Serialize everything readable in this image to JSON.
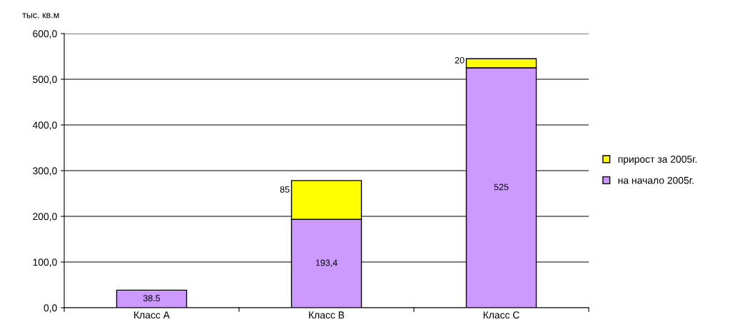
{
  "chart_data": {
    "type": "bar",
    "stacked": true,
    "ylabel": "тыс. кв.м",
    "categories": [
      "Класс А",
      "Класс В",
      "Класс С"
    ],
    "series": [
      {
        "name": "на начало 2005г.",
        "color": "#cc99ff",
        "values": [
          38.5,
          193.4,
          525
        ],
        "value_labels": [
          "38.5",
          "193,4",
          "525"
        ]
      },
      {
        "name": "прирост за 2005г.",
        "color": "#ffff00",
        "values": [
          null,
          85,
          20
        ],
        "value_labels": [
          null,
          "85",
          "20"
        ]
      }
    ],
    "ylim": [
      0,
      600
    ],
    "yticks": [
      {
        "value": 0,
        "label": "0,0"
      },
      {
        "value": 100,
        "label": "100,0"
      },
      {
        "value": 200,
        "label": "200,0"
      },
      {
        "value": 300,
        "label": "300,0"
      },
      {
        "value": 400,
        "label": "400,0"
      },
      {
        "value": 500,
        "label": "500,0"
      },
      {
        "value": 600,
        "label": "600,0"
      }
    ],
    "grid": "y",
    "legend": "right"
  }
}
